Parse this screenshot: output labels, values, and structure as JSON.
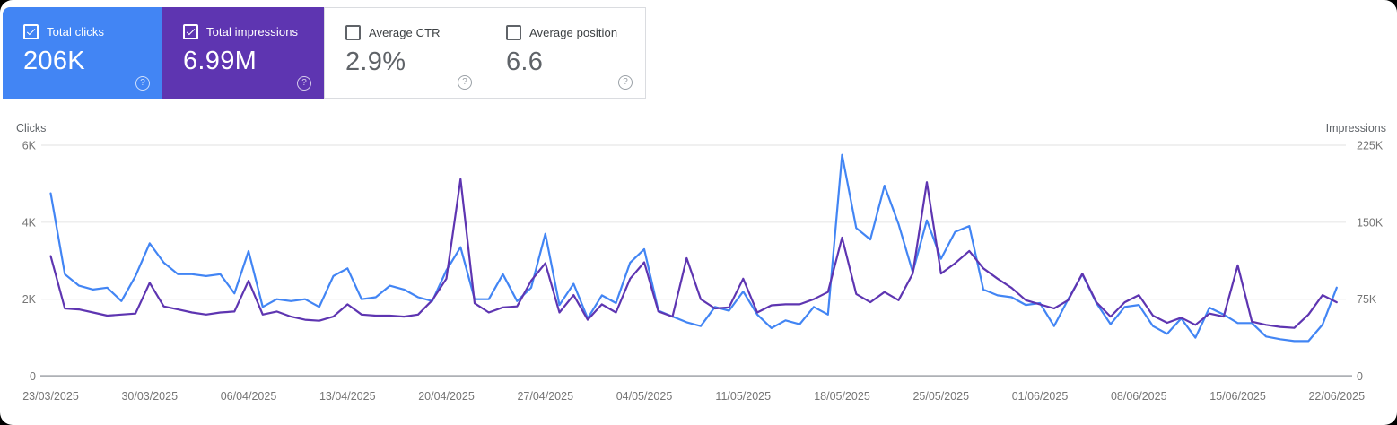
{
  "panel_name": "Search performance",
  "icons": {
    "help": "?",
    "check": "✓"
  },
  "cards": [
    {
      "id": "total-clicks",
      "label": "Total clicks",
      "value": "206K",
      "checked": true,
      "bg": "#4285f4",
      "style": "colored"
    },
    {
      "id": "total-impressions",
      "label": "Total impressions",
      "value": "6.99M",
      "checked": true,
      "bg": "#5e35b1",
      "style": "colored"
    },
    {
      "id": "average-ctr",
      "label": "Average CTR",
      "value": "2.9%",
      "checked": false,
      "bg": "#ffffff",
      "style": "plain"
    },
    {
      "id": "average-position",
      "label": "Average position",
      "value": "6.6",
      "checked": false,
      "bg": "#ffffff",
      "style": "plain"
    }
  ],
  "chart_data": {
    "type": "line",
    "grid": true,
    "left_axis": {
      "title": "Clicks",
      "ticks": [
        "0",
        "2K",
        "4K",
        "6K"
      ],
      "min": 0,
      "max": 6000
    },
    "right_axis": {
      "title": "Impressions",
      "ticks": [
        "0",
        "75K",
        "150K",
        "225K"
      ],
      "min": 0,
      "max": 225000
    },
    "x_tick_labels": [
      "23/03/2025",
      "30/03/2025",
      "06/04/2025",
      "13/04/2025",
      "20/04/2025",
      "27/04/2025",
      "04/05/2025",
      "11/05/2025",
      "18/05/2025",
      "25/05/2025",
      "01/06/2025",
      "08/06/2025",
      "15/06/2025",
      "22/06/2025"
    ],
    "points_per_tick": 7,
    "series": [
      {
        "name": "Total clicks",
        "axis": "left",
        "color": "#4285f4",
        "values": [
          4750,
          2650,
          2350,
          2250,
          2300,
          1950,
          2600,
          3450,
          2950,
          2650,
          2650,
          2600,
          2650,
          2150,
          3250,
          1800,
          2000,
          1950,
          2000,
          1800,
          2600,
          2800,
          2000,
          2050,
          2350,
          2250,
          2050,
          1950,
          2750,
          3350,
          2000,
          2000,
          2650,
          1950,
          2300,
          3700,
          1850,
          2400,
          1500,
          2100,
          1900,
          2950,
          3300,
          1700,
          1550,
          1400,
          1300,
          1800,
          1700,
          2200,
          1600,
          1250,
          1450,
          1350,
          1800,
          1600,
          5750,
          3850,
          3550,
          4950,
          3950,
          2700,
          4050,
          3050,
          3750,
          3900,
          2250,
          2100,
          2050,
          1850,
          1900,
          1300,
          2000,
          2650,
          1900,
          1350,
          1800,
          1850,
          1300,
          1100,
          1500,
          1000,
          1780,
          1600,
          1380,
          1380,
          1030,
          960,
          910,
          910,
          1340,
          2300
        ]
      },
      {
        "name": "Total impressions",
        "axis": "right",
        "color": "#5e35b1",
        "values": [
          117000,
          66000,
          65000,
          62000,
          59000,
          60000,
          61000,
          91000,
          68000,
          65000,
          62000,
          60000,
          62000,
          63000,
          93000,
          60000,
          63000,
          58000,
          55000,
          54000,
          58000,
          70000,
          60000,
          59000,
          59000,
          58000,
          60000,
          74000,
          95000,
          192000,
          71000,
          62000,
          67000,
          68000,
          93000,
          110000,
          62000,
          79000,
          55000,
          70000,
          62000,
          95000,
          111000,
          63000,
          58000,
          115000,
          75000,
          66000,
          67000,
          95000,
          62000,
          69000,
          70000,
          70000,
          75000,
          82000,
          135000,
          80000,
          72000,
          82000,
          74000,
          100000,
          189000,
          100000,
          110000,
          122000,
          105000,
          95000,
          86000,
          74000,
          70000,
          66000,
          74000,
          100000,
          72000,
          58000,
          72000,
          79000,
          59000,
          52000,
          57000,
          50000,
          61000,
          58000,
          108000,
          53000,
          50000,
          48000,
          47000,
          60000,
          79000,
          72000
        ]
      }
    ],
    "colors": {
      "gridline": "#ececec",
      "axis_line": "#aeb1b5",
      "tick_text": "#757575",
      "axis_title_text": "#5f6368"
    }
  }
}
